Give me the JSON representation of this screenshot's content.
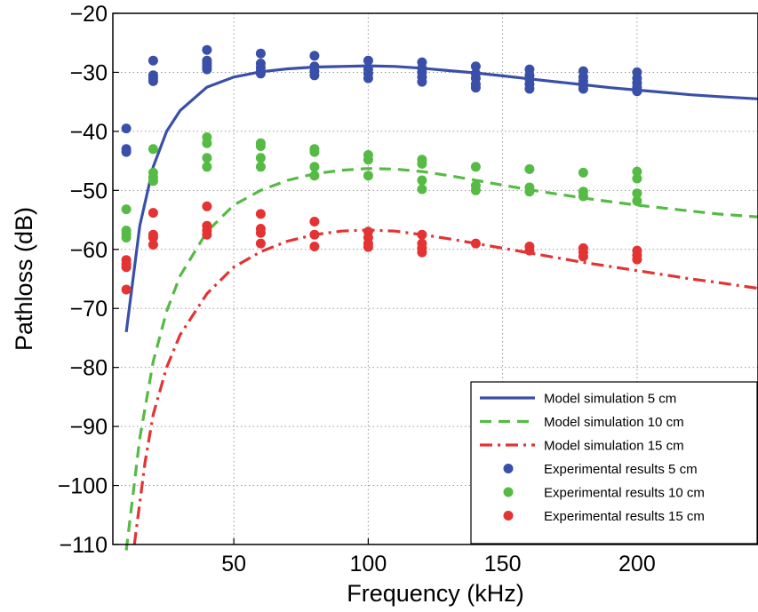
{
  "chart_data": {
    "type": "line",
    "xlabel": "Frequency (kHz)",
    "ylabel": "Pathloss (dB)",
    "xlim": [
      5,
      245
    ],
    "ylim": [
      -110,
      -20
    ],
    "xticks": [
      50,
      100,
      150,
      200
    ],
    "xtick_labels": [
      "50",
      "100",
      "150",
      "200"
    ],
    "yticks": [
      -20,
      -30,
      -40,
      -50,
      -60,
      -70,
      -80,
      -90,
      -100,
      -110
    ],
    "ytick_labels": [
      "−20",
      "−30",
      "−40",
      "−50",
      "−60",
      "−70",
      "−80",
      "−90",
      "−100",
      "−110"
    ],
    "grid": true,
    "legend_position": "bottom-right",
    "lines": [
      {
        "name": "Model simulation 5 cm",
        "color": "#3a50a8",
        "style": "solid",
        "x": [
          10,
          15,
          20,
          25,
          30,
          40,
          50,
          60,
          70,
          80,
          90,
          100,
          110,
          120,
          130,
          140,
          150,
          160,
          170,
          180,
          190,
          200,
          210,
          220,
          230,
          245
        ],
        "y": [
          -74,
          -56,
          -46,
          -40,
          -36.5,
          -32.5,
          -30.8,
          -29.9,
          -29.4,
          -29.1,
          -29.0,
          -28.9,
          -29.0,
          -29.3,
          -29.7,
          -30.1,
          -30.6,
          -31.1,
          -31.6,
          -32.1,
          -32.6,
          -33.0,
          -33.4,
          -33.8,
          -34.1,
          -34.5
        ]
      },
      {
        "name": "Model simulation 10 cm",
        "color": "#55bb44",
        "style": "dashed",
        "x": [
          10,
          15,
          20,
          25,
          30,
          40,
          50,
          60,
          70,
          80,
          90,
          100,
          110,
          120,
          130,
          140,
          150,
          160,
          170,
          180,
          190,
          200,
          210,
          220,
          230,
          245
        ],
        "y": [
          -111,
          -92,
          -79,
          -70.5,
          -64.5,
          -57,
          -52.5,
          -50,
          -48.3,
          -47.2,
          -46.6,
          -46.3,
          -46.4,
          -46.8,
          -47.5,
          -48.3,
          -49.1,
          -49.9,
          -50.6,
          -51.3,
          -51.9,
          -52.5,
          -53.0,
          -53.5,
          -54.0,
          -54.5
        ]
      },
      {
        "name": "Model simulation 15 cm",
        "color": "#e33333",
        "style": "dashdot",
        "x": [
          13,
          17,
          20,
          25,
          30,
          40,
          50,
          60,
          70,
          80,
          90,
          100,
          110,
          120,
          130,
          140,
          150,
          160,
          170,
          180,
          190,
          200,
          210,
          220,
          230,
          245
        ],
        "y": [
          -110,
          -96,
          -88,
          -80,
          -74.5,
          -67.5,
          -63,
          -60.4,
          -58.6,
          -57.5,
          -56.9,
          -56.7,
          -56.9,
          -57.5,
          -58.2,
          -59.0,
          -59.8,
          -60.6,
          -61.4,
          -62.2,
          -62.9,
          -63.6,
          -64.3,
          -65.0,
          -65.6,
          -66.6
        ]
      }
    ],
    "scatter": [
      {
        "name": "Experimental results 5 cm",
        "color": "#3a50a8",
        "points": [
          [
            10,
            -39.5
          ],
          [
            10,
            -43
          ],
          [
            10,
            -43.5
          ],
          [
            20,
            -28
          ],
          [
            20,
            -30.5
          ],
          [
            20,
            -31
          ],
          [
            20,
            -31.5
          ],
          [
            40,
            -26.2
          ],
          [
            40,
            -28
          ],
          [
            40,
            -28.5
          ],
          [
            40,
            -29
          ],
          [
            40,
            -29.5
          ],
          [
            60,
            -26.8
          ],
          [
            60,
            -28.5
          ],
          [
            60,
            -29.2
          ],
          [
            60,
            -29.8
          ],
          [
            60,
            -30.2
          ],
          [
            80,
            -27.2
          ],
          [
            80,
            -29
          ],
          [
            80,
            -29.8
          ],
          [
            80,
            -30.5
          ],
          [
            100,
            -28
          ],
          [
            100,
            -29.5
          ],
          [
            100,
            -30.2
          ],
          [
            100,
            -31
          ],
          [
            120,
            -28.3
          ],
          [
            120,
            -29.3
          ],
          [
            120,
            -30
          ],
          [
            120,
            -30.8
          ],
          [
            120,
            -31.6
          ],
          [
            140,
            -29
          ],
          [
            140,
            -30.2
          ],
          [
            140,
            -31
          ],
          [
            140,
            -32
          ],
          [
            140,
            -32.6
          ],
          [
            160,
            -29.5
          ],
          [
            160,
            -30.5
          ],
          [
            160,
            -31.2
          ],
          [
            160,
            -32
          ],
          [
            160,
            -32.8
          ],
          [
            180,
            -29.8
          ],
          [
            180,
            -30.8
          ],
          [
            180,
            -31.5
          ],
          [
            180,
            -32.2
          ],
          [
            180,
            -32.8
          ],
          [
            200,
            -30
          ],
          [
            200,
            -31
          ],
          [
            200,
            -31.8
          ],
          [
            200,
            -32.5
          ],
          [
            200,
            -33.2
          ]
        ]
      },
      {
        "name": "Experimental results 10 cm",
        "color": "#55bb44",
        "points": [
          [
            10,
            -53.2
          ],
          [
            10,
            -56.8
          ],
          [
            10,
            -57.4
          ],
          [
            10,
            -58
          ],
          [
            20,
            -43
          ],
          [
            20,
            -47
          ],
          [
            20,
            -47.8
          ],
          [
            20,
            -48.4
          ],
          [
            40,
            -41
          ],
          [
            40,
            -42
          ],
          [
            40,
            -44.5
          ],
          [
            40,
            -46
          ],
          [
            60,
            -42
          ],
          [
            60,
            -42.5
          ],
          [
            60,
            -44.5
          ],
          [
            60,
            -46
          ],
          [
            80,
            -43
          ],
          [
            80,
            -43.5
          ],
          [
            80,
            -46
          ],
          [
            80,
            -47.5
          ],
          [
            100,
            -44
          ],
          [
            100,
            -44.8
          ],
          [
            100,
            -47.5
          ],
          [
            120,
            -44.8
          ],
          [
            120,
            -45.5
          ],
          [
            120,
            -48.3
          ],
          [
            120,
            -49.8
          ],
          [
            140,
            -46
          ],
          [
            140,
            -49.2
          ],
          [
            140,
            -50
          ],
          [
            160,
            -46.4
          ],
          [
            160,
            -49.5
          ],
          [
            160,
            -50.2
          ],
          [
            180,
            -47
          ],
          [
            180,
            -50.2
          ],
          [
            180,
            -51
          ],
          [
            200,
            -46.8
          ],
          [
            200,
            -48
          ],
          [
            200,
            -50.5
          ],
          [
            200,
            -51.8
          ]
        ]
      },
      {
        "name": "Experimental results 15 cm",
        "color": "#e33333",
        "points": [
          [
            10,
            -61.8
          ],
          [
            10,
            -62.5
          ],
          [
            10,
            -63
          ],
          [
            10,
            -66.8
          ],
          [
            20,
            -53.8
          ],
          [
            20,
            -57.5
          ],
          [
            20,
            -58
          ],
          [
            20,
            -59.2
          ],
          [
            40,
            -52.7
          ],
          [
            40,
            -56
          ],
          [
            40,
            -56.8
          ],
          [
            40,
            -57.5
          ],
          [
            60,
            -54
          ],
          [
            60,
            -56.5
          ],
          [
            60,
            -57.2
          ],
          [
            60,
            -59
          ],
          [
            80,
            -55.3
          ],
          [
            80,
            -57.5
          ],
          [
            80,
            -59.5
          ],
          [
            100,
            -57
          ],
          [
            100,
            -58
          ],
          [
            100,
            -59
          ],
          [
            100,
            -59.6
          ],
          [
            120,
            -57.5
          ],
          [
            120,
            -59
          ],
          [
            120,
            -59.8
          ],
          [
            120,
            -60.5
          ],
          [
            140,
            -59
          ],
          [
            160,
            -59.5
          ],
          [
            160,
            -60.2
          ],
          [
            180,
            -59.8
          ],
          [
            180,
            -60.5
          ],
          [
            180,
            -61.2
          ],
          [
            200,
            -60.2
          ],
          [
            200,
            -61
          ],
          [
            200,
            -61.7
          ]
        ]
      }
    ],
    "legend": [
      {
        "label": "Model simulation 5 cm",
        "kind": "line",
        "style": "solid",
        "color": "#3a50a8"
      },
      {
        "label": "Model simulation 10 cm",
        "kind": "line",
        "style": "dashed",
        "color": "#55bb44"
      },
      {
        "label": "Model simulation 15 cm",
        "kind": "line",
        "style": "dashdot",
        "color": "#e33333"
      },
      {
        "label": "Experimental results 5 cm",
        "kind": "marker",
        "color": "#3a50a8"
      },
      {
        "label": "Experimental results 10 cm",
        "kind": "marker",
        "color": "#55bb44"
      },
      {
        "label": "Experimental results 15 cm",
        "kind": "marker",
        "color": "#e33333"
      }
    ]
  }
}
